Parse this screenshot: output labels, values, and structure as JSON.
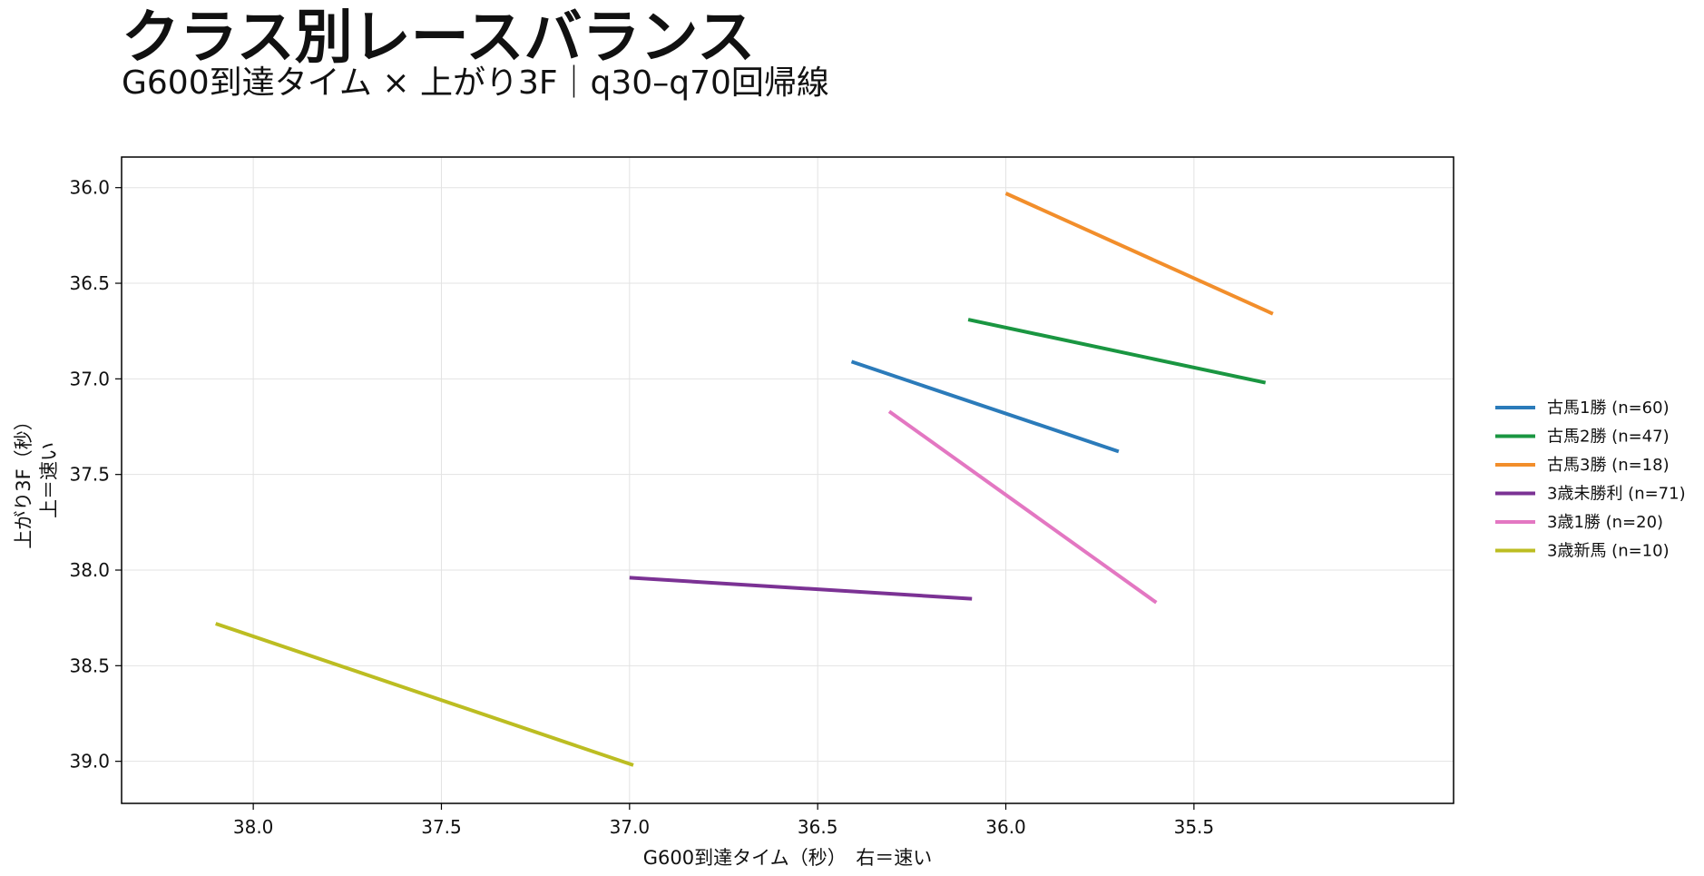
{
  "title": "クラス別レースバランス",
  "subtitle": "G600到達タイム × 上がり3F｜q30–q70回帰線",
  "chart_data": {
    "type": "line",
    "xlabel": "G600到達タイム（秒）　右＝速い",
    "ylabel": [
      "上がり3F（秒）",
      "上＝速い"
    ],
    "xlim": [
      38.35,
      34.81
    ],
    "ylim": [
      39.22,
      35.84
    ],
    "x_inverted": true,
    "y_inverted": true,
    "xticks": [
      "38.0",
      "37.5",
      "37.0",
      "36.5",
      "36.0",
      "35.5"
    ],
    "yticks": [
      "36.0",
      "36.5",
      "37.0",
      "37.5",
      "38.0",
      "38.5",
      "39.0"
    ],
    "grid": true,
    "legend_position": "right",
    "series": [
      {
        "name": "古馬1勝 (n=60)",
        "color": "#2b7bba",
        "points": [
          [
            36.41,
            36.91
          ],
          [
            35.7,
            37.38
          ]
        ]
      },
      {
        "name": "古馬2勝 (n=47)",
        "color": "#1a9641",
        "points": [
          [
            36.1,
            36.69
          ],
          [
            35.31,
            37.02
          ]
        ]
      },
      {
        "name": "古馬3勝 (n=18)",
        "color": "#f28e2b",
        "points": [
          [
            36.0,
            36.03
          ],
          [
            35.29,
            36.66
          ]
        ]
      },
      {
        "name": "3歳未勝利 (n=71)",
        "color": "#7b3294",
        "points": [
          [
            37.0,
            38.04
          ],
          [
            36.09,
            38.15
          ]
        ]
      },
      {
        "name": "3歳1勝 (n=20)",
        "color": "#e377c2",
        "points": [
          [
            36.31,
            37.17
          ],
          [
            35.6,
            38.17
          ]
        ]
      },
      {
        "name": "3歳新馬 (n=10)",
        "color": "#bcbd22",
        "points": [
          [
            38.1,
            38.28
          ],
          [
            36.99,
            39.02
          ]
        ]
      }
    ]
  }
}
